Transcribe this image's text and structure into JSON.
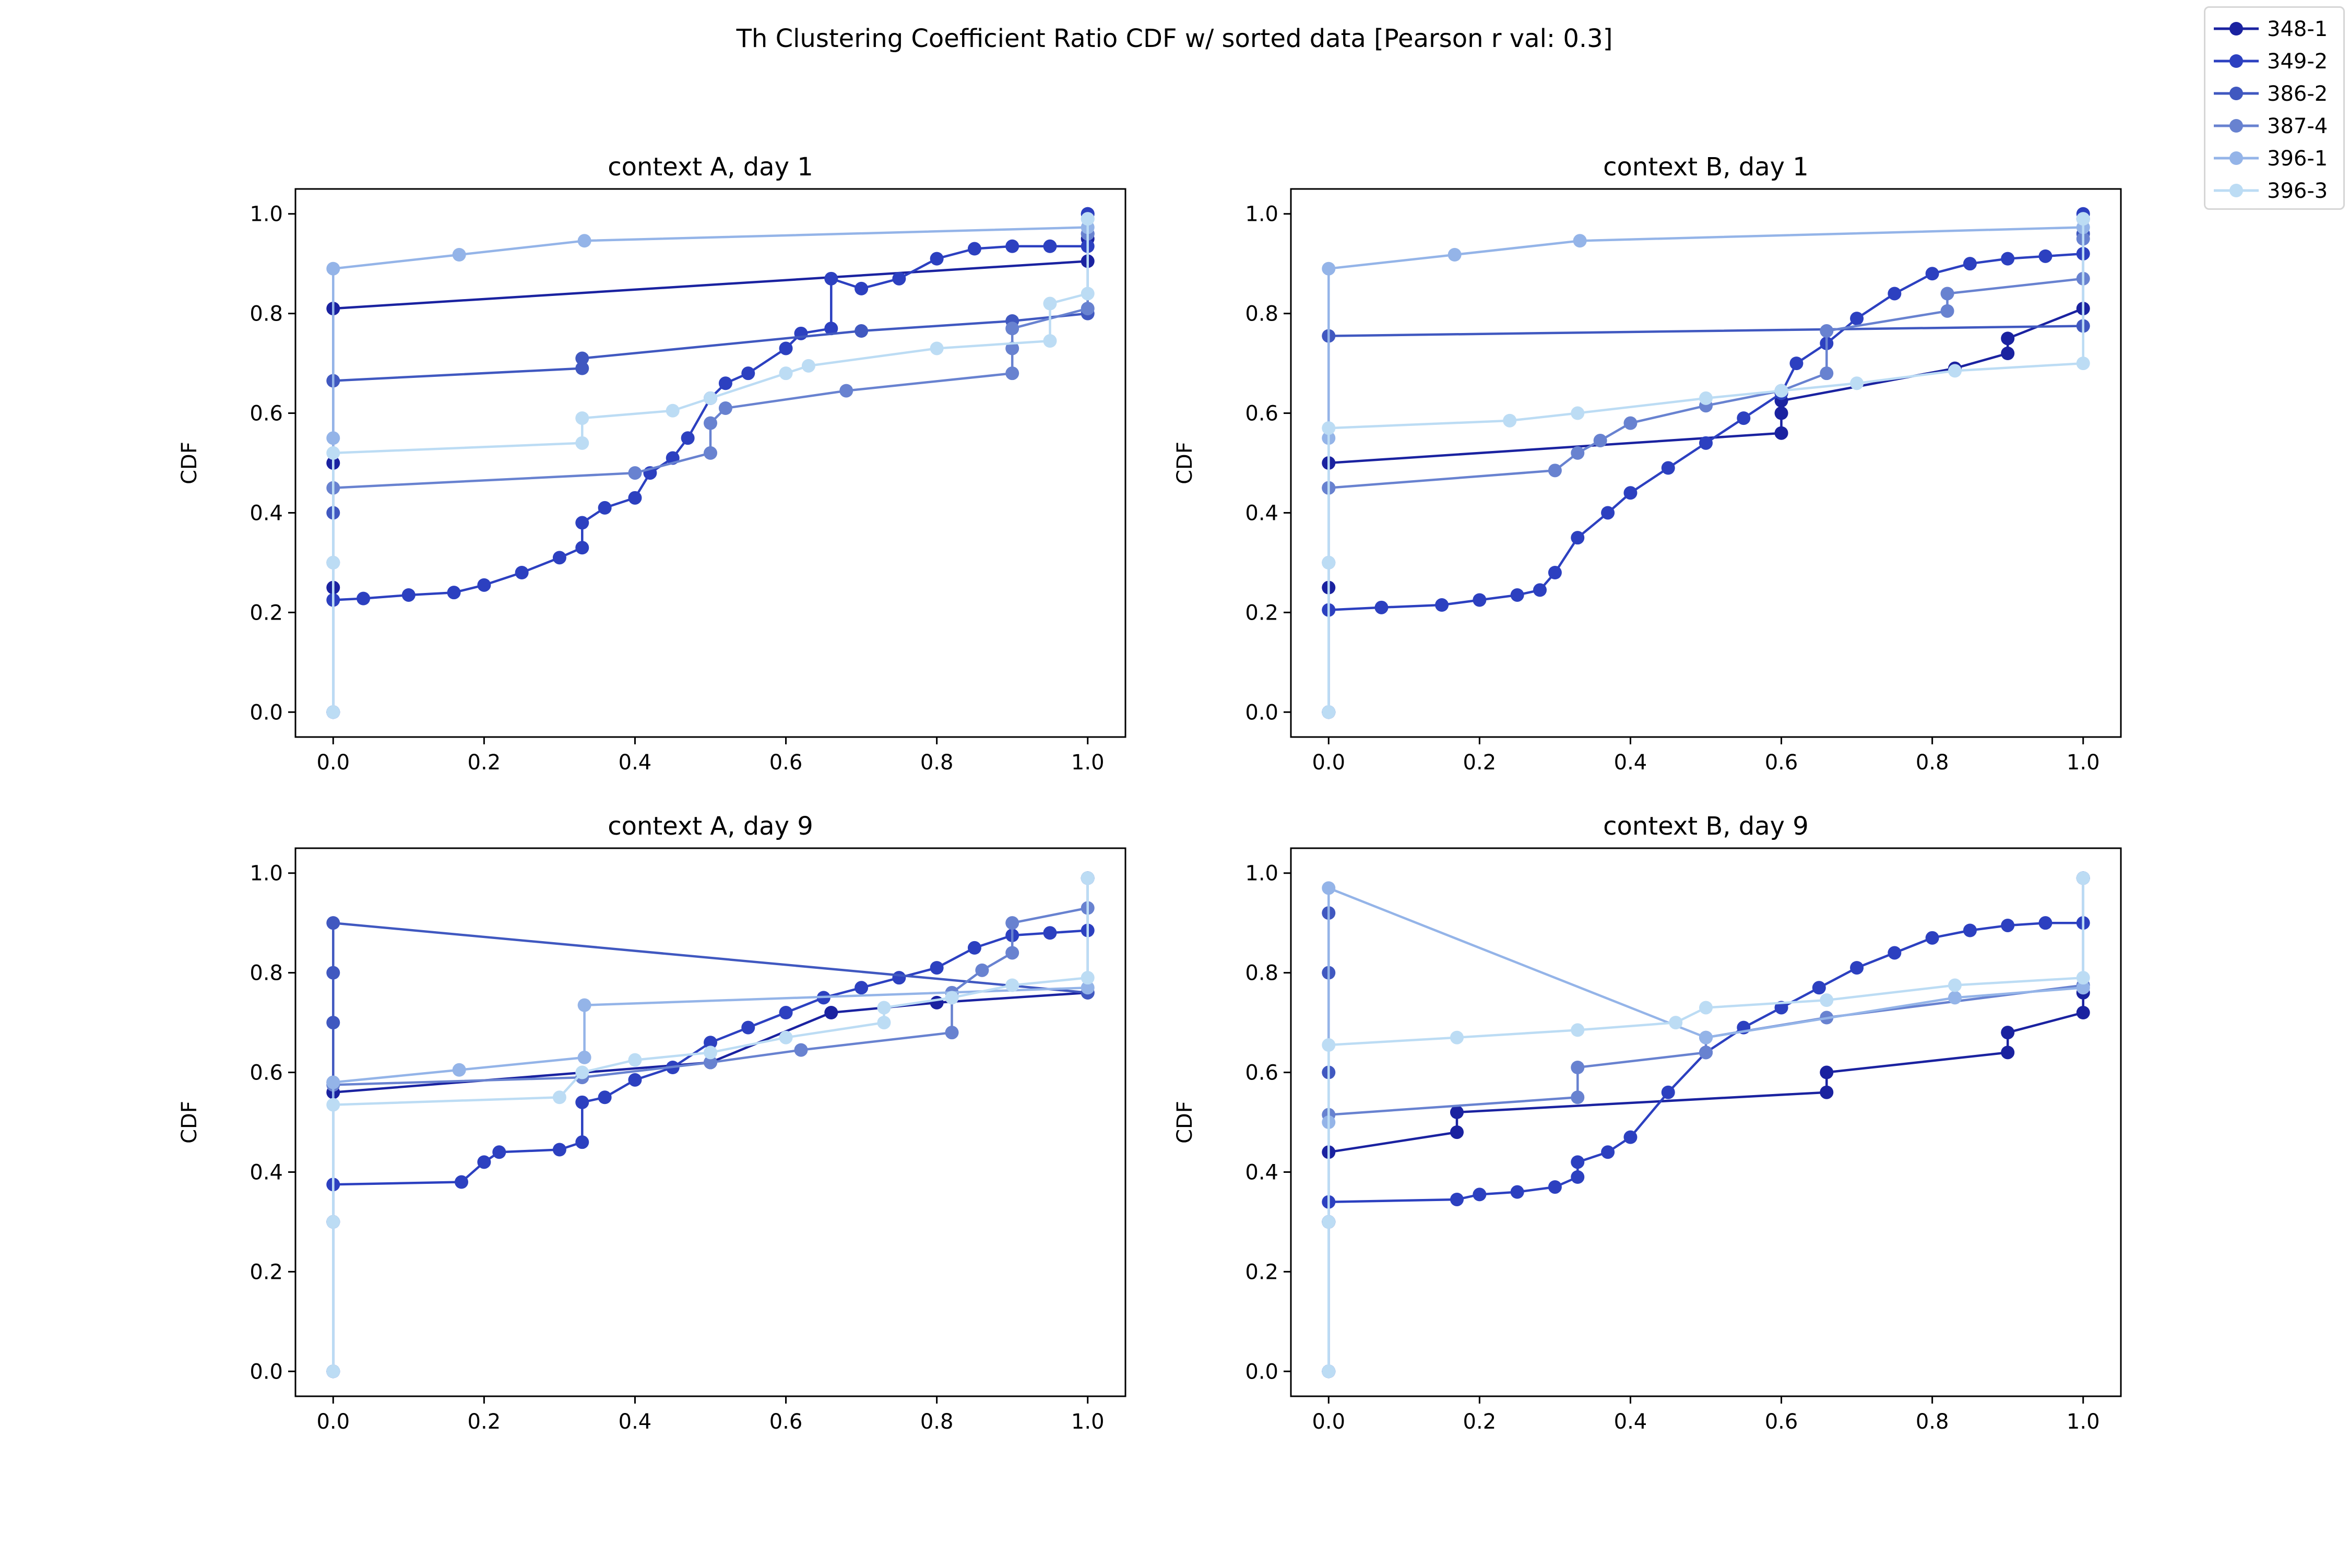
{
  "figure": {
    "suptitle": "Th Clustering Coefficient Ratio CDF w/ sorted data [Pearson r val: 0.3]"
  },
  "legend": {
    "placement": "top-right",
    "entries": [
      {
        "label": "348-1",
        "color": "#1a22a0"
      },
      {
        "label": "349-2",
        "color": "#2c40c0"
      },
      {
        "label": "386-2",
        "color": "#4058c0"
      },
      {
        "label": "387-4",
        "color": "#6882d0"
      },
      {
        "label": "396-1",
        "color": "#94b4e8"
      },
      {
        "label": "396-3",
        "color": "#bcdcf4"
      }
    ]
  },
  "chart_data": [
    {
      "type": "line",
      "title": "context A, day 1",
      "xlabel": "",
      "ylabel": "CDF",
      "xlim": [
        -0.05,
        1.05
      ],
      "ylim": [
        -0.05,
        1.05
      ],
      "xticks": [
        "0.0",
        "0.2",
        "0.4",
        "0.6",
        "0.8",
        "1.0"
      ],
      "yticks": [
        "0.0",
        "0.2",
        "0.4",
        "0.6",
        "0.8",
        "1.0"
      ],
      "grid": false,
      "series": [
        {
          "name": "348-1",
          "x": [
            0.0,
            0.0,
            0.0,
            0.0,
            1.0,
            1.0,
            1.0
          ],
          "y": [
            0.0,
            0.25,
            0.5,
            0.81,
            0.905,
            0.95,
            1.0
          ]
        },
        {
          "name": "349-2",
          "x": [
            0.0,
            0.0,
            0.04,
            0.1,
            0.16,
            0.2,
            0.25,
            0.3,
            0.33,
            0.33,
            0.36,
            0.4,
            0.42,
            0.45,
            0.47,
            0.5,
            0.52,
            0.55,
            0.6,
            0.62,
            0.66,
            0.66,
            0.7,
            0.75,
            0.8,
            0.85,
            0.9,
            0.95,
            1.0,
            1.0
          ],
          "y": [
            0.0,
            0.225,
            0.228,
            0.235,
            0.24,
            0.255,
            0.28,
            0.31,
            0.33,
            0.38,
            0.41,
            0.43,
            0.48,
            0.51,
            0.55,
            0.63,
            0.66,
            0.68,
            0.73,
            0.76,
            0.77,
            0.87,
            0.85,
            0.87,
            0.91,
            0.93,
            0.935,
            0.935,
            0.935,
            1.0
          ]
        },
        {
          "name": "386-2",
          "x": [
            0.0,
            0.0,
            0.0,
            0.33,
            0.33,
            0.7,
            0.9,
            1.0,
            1.0
          ],
          "y": [
            0.0,
            0.4,
            0.665,
            0.69,
            0.71,
            0.765,
            0.785,
            0.8,
            0.96
          ]
        },
        {
          "name": "387-4",
          "x": [
            0.0,
            0.0,
            0.0,
            0.4,
            0.5,
            0.5,
            0.52,
            0.68,
            0.9,
            0.9,
            0.9,
            1.0,
            1.0
          ],
          "y": [
            0.0,
            0.3,
            0.45,
            0.48,
            0.52,
            0.58,
            0.61,
            0.645,
            0.68,
            0.73,
            0.77,
            0.81,
            0.96
          ]
        },
        {
          "name": "396-1",
          "x": [
            0.0,
            0.0,
            0.0,
            0.167,
            0.333,
            1.0,
            1.0
          ],
          "y": [
            0.0,
            0.55,
            0.89,
            0.918,
            0.946,
            0.973,
            0.99
          ]
        },
        {
          "name": "396-3",
          "x": [
            0.0,
            0.0,
            0.0,
            0.33,
            0.33,
            0.45,
            0.5,
            0.6,
            0.63,
            0.8,
            0.95,
            0.95,
            1.0,
            1.0
          ],
          "y": [
            0.0,
            0.3,
            0.52,
            0.54,
            0.59,
            0.605,
            0.63,
            0.68,
            0.695,
            0.73,
            0.745,
            0.82,
            0.84,
            0.99
          ]
        }
      ]
    },
    {
      "type": "line",
      "title": "context B, day 1",
      "xlabel": "",
      "ylabel": "CDF",
      "xlim": [
        -0.05,
        1.05
      ],
      "ylim": [
        -0.05,
        1.05
      ],
      "xticks": [
        "0.0",
        "0.2",
        "0.4",
        "0.6",
        "0.8",
        "1.0"
      ],
      "yticks": [
        "0.0",
        "0.2",
        "0.4",
        "0.6",
        "0.8",
        "1.0"
      ],
      "grid": false,
      "series": [
        {
          "name": "348-1",
          "x": [
            0.0,
            0.0,
            0.0,
            0.6,
            0.6,
            0.6,
            0.83,
            0.9,
            0.9,
            1.0,
            1.0
          ],
          "y": [
            0.0,
            0.25,
            0.5,
            0.56,
            0.6,
            0.625,
            0.69,
            0.72,
            0.75,
            0.81,
            0.99
          ]
        },
        {
          "name": "349-2",
          "x": [
            0.0,
            0.0,
            0.07,
            0.15,
            0.2,
            0.25,
            0.28,
            0.3,
            0.33,
            0.37,
            0.4,
            0.45,
            0.5,
            0.55,
            0.6,
            0.62,
            0.66,
            0.7,
            0.75,
            0.8,
            0.85,
            0.9,
            0.95,
            1.0,
            1.0
          ],
          "y": [
            0.0,
            0.205,
            0.21,
            0.215,
            0.225,
            0.235,
            0.245,
            0.28,
            0.35,
            0.4,
            0.44,
            0.49,
            0.54,
            0.59,
            0.64,
            0.7,
            0.74,
            0.79,
            0.84,
            0.88,
            0.9,
            0.91,
            0.915,
            0.92,
            1.0
          ]
        },
        {
          "name": "386-2",
          "x": [
            0.0,
            0.0,
            0.0,
            1.0,
            1.0
          ],
          "y": [
            0.0,
            0.45,
            0.755,
            0.775,
            0.96
          ]
        },
        {
          "name": "387-4",
          "x": [
            0.0,
            0.0,
            0.0,
            0.3,
            0.33,
            0.36,
            0.4,
            0.5,
            0.6,
            0.66,
            0.66,
            0.82,
            0.82,
            1.0,
            1.0
          ],
          "y": [
            0.0,
            0.3,
            0.45,
            0.485,
            0.52,
            0.545,
            0.58,
            0.615,
            0.645,
            0.68,
            0.765,
            0.805,
            0.84,
            0.87,
            0.95
          ]
        },
        {
          "name": "396-1",
          "x": [
            0.0,
            0.0,
            0.0,
            0.167,
            0.333,
            1.0,
            1.0
          ],
          "y": [
            0.0,
            0.55,
            0.89,
            0.918,
            0.946,
            0.973,
            0.99
          ]
        },
        {
          "name": "396-3",
          "x": [
            0.0,
            0.0,
            0.0,
            0.24,
            0.33,
            0.5,
            0.6,
            0.7,
            0.83,
            1.0,
            1.0
          ],
          "y": [
            0.0,
            0.3,
            0.57,
            0.585,
            0.6,
            0.63,
            0.645,
            0.66,
            0.685,
            0.7,
            0.99
          ]
        }
      ]
    },
    {
      "type": "line",
      "title": "context A, day 9",
      "xlabel": "",
      "ylabel": "CDF",
      "xlim": [
        -0.05,
        1.05
      ],
      "ylim": [
        -0.05,
        1.05
      ],
      "xticks": [
        "0.0",
        "0.2",
        "0.4",
        "0.6",
        "0.8",
        "1.0"
      ],
      "yticks": [
        "0.0",
        "0.2",
        "0.4",
        "0.6",
        "0.8",
        "1.0"
      ],
      "grid": false,
      "series": [
        {
          "name": "348-1",
          "x": [
            0.0,
            0.0,
            0.0,
            0.5,
            0.66,
            0.8,
            1.0,
            1.0
          ],
          "y": [
            0.0,
            0.3,
            0.56,
            0.62,
            0.72,
            0.74,
            0.76,
            0.99
          ]
        },
        {
          "name": "349-2",
          "x": [
            0.0,
            0.0,
            0.17,
            0.2,
            0.22,
            0.3,
            0.33,
            0.33,
            0.36,
            0.4,
            0.45,
            0.5,
            0.55,
            0.6,
            0.65,
            0.7,
            0.75,
            0.8,
            0.85,
            0.9,
            0.95,
            1.0,
            1.0
          ],
          "y": [
            0.0,
            0.375,
            0.38,
            0.42,
            0.44,
            0.445,
            0.46,
            0.54,
            0.55,
            0.585,
            0.61,
            0.66,
            0.69,
            0.72,
            0.75,
            0.77,
            0.79,
            0.81,
            0.85,
            0.875,
            0.88,
            0.885,
            0.99
          ]
        },
        {
          "name": "386-2",
          "x": [
            0.0,
            0.0,
            0.0,
            0.0,
            0.0,
            0.0,
            1.0
          ],
          "y": [
            0.0,
            0.3,
            0.58,
            0.7,
            0.8,
            0.9,
            0.76
          ]
        },
        {
          "name": "387-4",
          "x": [
            0.0,
            0.0,
            0.0,
            0.33,
            0.5,
            0.62,
            0.82,
            0.82,
            0.86,
            0.9,
            0.9,
            1.0,
            1.0
          ],
          "y": [
            0.0,
            0.3,
            0.575,
            0.59,
            0.62,
            0.645,
            0.68,
            0.76,
            0.805,
            0.84,
            0.9,
            0.93,
            0.99
          ]
        },
        {
          "name": "396-1",
          "x": [
            0.0,
            0.0,
            0.0,
            0.167,
            0.333,
            0.333,
            1.0,
            1.0
          ],
          "y": [
            0.0,
            0.3,
            0.58,
            0.605,
            0.63,
            0.735,
            0.77,
            0.99
          ]
        },
        {
          "name": "396-3",
          "x": [
            0.0,
            0.0,
            0.0,
            0.3,
            0.33,
            0.4,
            0.5,
            0.6,
            0.73,
            0.73,
            0.82,
            0.9,
            1.0,
            1.0
          ],
          "y": [
            0.0,
            0.3,
            0.535,
            0.55,
            0.6,
            0.625,
            0.64,
            0.67,
            0.7,
            0.73,
            0.75,
            0.775,
            0.79,
            0.99
          ]
        }
      ]
    },
    {
      "type": "line",
      "title": "context B, day 9",
      "xlabel": "",
      "ylabel": "CDF",
      "xlim": [
        -0.05,
        1.05
      ],
      "ylim": [
        -0.05,
        1.05
      ],
      "xticks": [
        "0.0",
        "0.2",
        "0.4",
        "0.6",
        "0.8",
        "1.0"
      ],
      "yticks": [
        "0.0",
        "0.2",
        "0.4",
        "0.6",
        "0.8",
        "1.0"
      ],
      "grid": false,
      "series": [
        {
          "name": "348-1",
          "x": [
            0.0,
            0.0,
            0.0,
            0.17,
            0.17,
            0.66,
            0.66,
            0.9,
            0.9,
            1.0,
            1.0,
            1.0
          ],
          "y": [
            0.0,
            0.3,
            0.44,
            0.48,
            0.52,
            0.56,
            0.6,
            0.64,
            0.68,
            0.72,
            0.76,
            0.99
          ]
        },
        {
          "name": "349-2",
          "x": [
            0.0,
            0.0,
            0.17,
            0.2,
            0.25,
            0.3,
            0.33,
            0.33,
            0.37,
            0.4,
            0.45,
            0.5,
            0.55,
            0.6,
            0.65,
            0.7,
            0.75,
            0.8,
            0.85,
            0.9,
            0.95,
            1.0,
            1.0
          ],
          "y": [
            0.0,
            0.34,
            0.345,
            0.355,
            0.36,
            0.37,
            0.39,
            0.42,
            0.44,
            0.47,
            0.56,
            0.64,
            0.69,
            0.73,
            0.77,
            0.81,
            0.84,
            0.87,
            0.885,
            0.895,
            0.9,
            0.9,
            0.99
          ]
        },
        {
          "name": "386-2",
          "x": [
            0.0,
            0.0,
            0.0,
            0.0,
            0.0
          ],
          "y": [
            0.0,
            0.3,
            0.6,
            0.8,
            0.92
          ]
        },
        {
          "name": "387-4",
          "x": [
            0.0,
            0.0,
            0.0,
            0.33,
            0.33,
            0.5,
            0.5,
            0.66,
            1.0,
            1.0
          ],
          "y": [
            0.0,
            0.3,
            0.515,
            0.55,
            0.61,
            0.64,
            0.67,
            0.71,
            0.775,
            0.99
          ]
        },
        {
          "name": "396-1",
          "x": [
            0.0,
            0.0,
            0.0,
            0.5,
            0.83,
            1.0,
            1.0
          ],
          "y": [
            0.0,
            0.5,
            0.97,
            0.67,
            0.75,
            0.77,
            0.99
          ]
        },
        {
          "name": "396-3",
          "x": [
            0.0,
            0.0,
            0.0,
            0.17,
            0.33,
            0.46,
            0.5,
            0.66,
            0.83,
            1.0,
            1.0
          ],
          "y": [
            0.0,
            0.3,
            0.655,
            0.67,
            0.685,
            0.7,
            0.73,
            0.745,
            0.775,
            0.79,
            0.99
          ]
        }
      ]
    }
  ]
}
